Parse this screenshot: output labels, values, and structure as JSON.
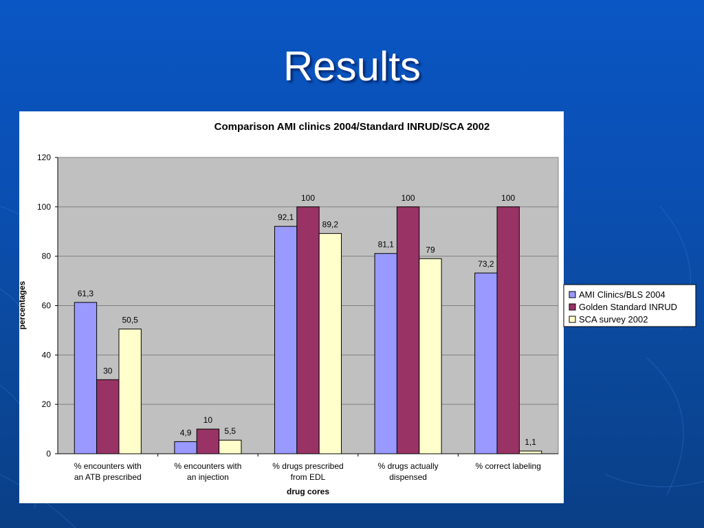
{
  "slide": {
    "title": "Results"
  },
  "colors": {
    "background": "#0a4fb3",
    "plot_area": "#c0c0c0",
    "frame": "#ffffff",
    "series": [
      "#9999ff",
      "#993366",
      "#ffffcc"
    ]
  },
  "chart_data": {
    "type": "bar",
    "title": "Comparison AMI clinics 2004/Standard INRUD/SCA 2002",
    "xlabel": "drug cores",
    "ylabel": "percentages",
    "ylim": [
      0,
      120
    ],
    "yticks": [
      0,
      20,
      40,
      60,
      80,
      100,
      120
    ],
    "grid": true,
    "legend_position": "right",
    "categories": [
      [
        "% encounters with",
        "an ATB prescribed"
      ],
      [
        "% encounters with",
        "an injection"
      ],
      [
        "% drugs prescribed",
        "from EDL"
      ],
      [
        "% drugs actually",
        "dispensed"
      ],
      [
        "% correct labeling"
      ]
    ],
    "series": [
      {
        "name": "AMI Clinics/BLS 2004",
        "values": [
          61.3,
          4.9,
          92.1,
          81.1,
          73.2
        ],
        "labels": [
          "61,3",
          "4,9",
          "92,1",
          "81,1",
          "73,2"
        ]
      },
      {
        "name": "Golden Standard INRUD",
        "values": [
          30,
          10,
          100,
          100,
          100
        ],
        "labels": [
          "30",
          "10",
          "100",
          "100",
          "100"
        ]
      },
      {
        "name": "SCA survey 2002",
        "values": [
          50.5,
          5.5,
          89.2,
          79,
          1.1
        ],
        "labels": [
          "50,5",
          "5,5",
          "89,2",
          "79",
          "1,1"
        ]
      }
    ]
  }
}
